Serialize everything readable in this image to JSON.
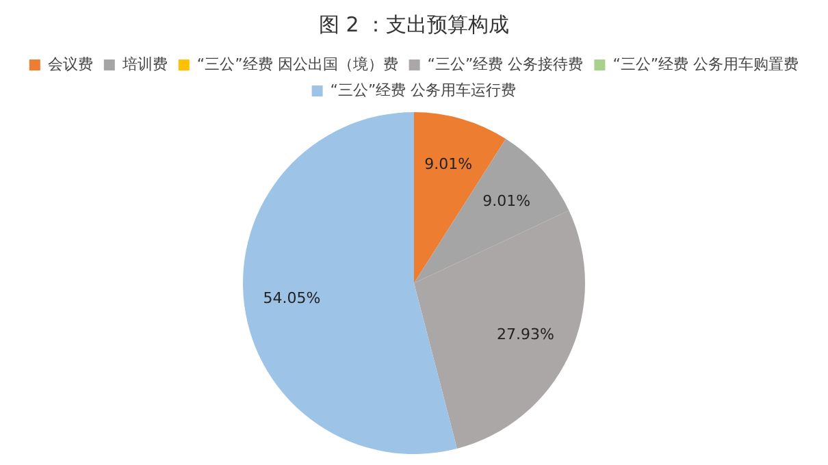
{
  "chart_data": {
    "type": "pie",
    "title": "图 2 ：支出预算构成",
    "categories": [
      "会议费",
      "培训费",
      "“三公”经费 因公出国（境）费",
      "“三公”经费 公务接待费",
      "“三公”经费 公务用车购置费",
      "“三公”经费 公务用车运行费"
    ],
    "values": [
      9.01,
      9.01,
      0,
      27.93,
      0,
      54.05
    ],
    "value_labels": [
      "9.01%",
      "9.01%",
      null,
      "27.93%",
      null,
      "54.05%"
    ],
    "colors": [
      "#ed7d31",
      "#a5a5a5",
      "#ffc000",
      "#aba7a6",
      "#a9d18e",
      "#9dc3e6"
    ],
    "legend": "top"
  }
}
